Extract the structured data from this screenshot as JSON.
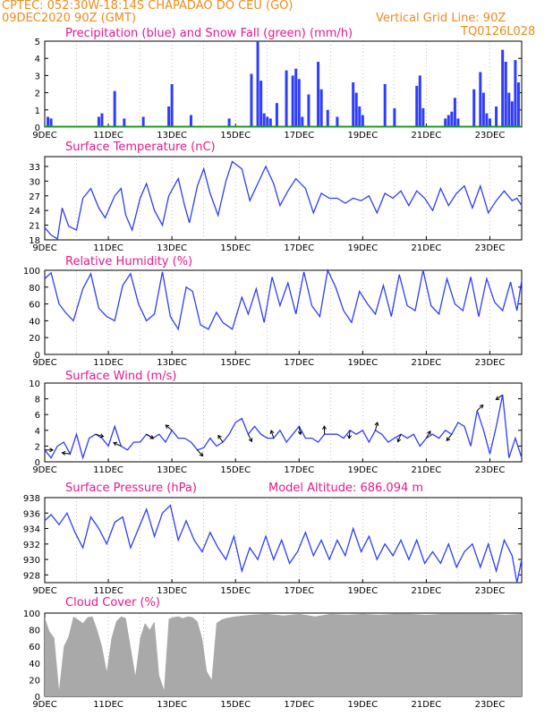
{
  "header": {
    "line1": "CPTEC:   052:30W-18:14S   CHAPADAO DO CEU (GO)",
    "line2_left": "09DEC2020 90Z (GMT)",
    "line2_right": "Vertical Grid Line: 90Z",
    "line3_right": "TQ0126L028"
  },
  "colors": {
    "header": "#f08a1c",
    "title": "#e8198b",
    "line": "#2e3cff",
    "precip": "#2e3cff",
    "snow": "#1a9c1a",
    "cloud": "#a9a9a9"
  },
  "x_ticks": [
    "9DEC",
    "11DEC",
    "13DEC",
    "15DEC",
    "17DEC",
    "19DEC",
    "21DEC",
    "23DEC"
  ],
  "chart_data": [
    {
      "type": "bar",
      "title": "Precipitation (blue) and Snow Fall (green) (mm/h)",
      "ylim": [
        0,
        5
      ],
      "yticks": [
        0,
        1,
        2,
        3,
        4,
        5
      ],
      "x_range_days": [
        9,
        24
      ],
      "series": [
        {
          "name": "Precipitation",
          "x": [
            9.1,
            9.2,
            10.7,
            10.8,
            11.2,
            11.5,
            12.1,
            12.9,
            13.0,
            13.6,
            14.8,
            15.5,
            15.7,
            15.8,
            15.9,
            16.0,
            16.1,
            16.3,
            16.6,
            16.8,
            16.9,
            17.0,
            17.1,
            17.3,
            17.6,
            17.7,
            17.9,
            18.2,
            18.7,
            18.8,
            18.9,
            19.0,
            19.7,
            20.0,
            20.7,
            20.8,
            20.9,
            21.6,
            21.7,
            21.8,
            21.9,
            22.0,
            22.5,
            22.7,
            22.8,
            22.9,
            23.0,
            23.2,
            23.4,
            23.5,
            23.6,
            23.7,
            23.8,
            23.9
          ],
          "values": [
            0.6,
            0.5,
            0.6,
            0.8,
            2.1,
            0.5,
            0.6,
            1.2,
            2.5,
            0.7,
            0.5,
            3.1,
            5.0,
            2.7,
            0.8,
            0.6,
            0.5,
            1.4,
            3.3,
            3.0,
            3.4,
            2.8,
            0.6,
            1.9,
            3.8,
            2.2,
            1.0,
            0.6,
            2.6,
            2.0,
            1.2,
            0.7,
            2.5,
            1.1,
            2.4,
            3.0,
            1.1,
            0.5,
            0.7,
            0.9,
            1.7,
            0.5,
            2.2,
            3.2,
            2.0,
            0.8,
            0.5,
            1.2,
            4.5,
            3.8,
            2.0,
            1.5,
            3.9,
            2.6
          ]
        },
        {
          "name": "Snow Fall",
          "values": [
            0
          ]
        }
      ]
    },
    {
      "type": "line",
      "title": "Surface Temperature (nC)",
      "ylim": [
        18,
        35
      ],
      "yticks": [
        18,
        21,
        24,
        27,
        30,
        33
      ],
      "x": [
        9.0,
        9.2,
        9.4,
        9.55,
        9.75,
        10.0,
        10.2,
        10.45,
        10.7,
        10.9,
        11.2,
        11.4,
        11.55,
        11.75,
        12.0,
        12.2,
        12.45,
        12.7,
        12.9,
        13.2,
        13.4,
        13.55,
        13.8,
        14.0,
        14.2,
        14.45,
        14.7,
        14.9,
        15.2,
        15.45,
        15.7,
        15.95,
        16.2,
        16.4,
        16.65,
        16.9,
        17.2,
        17.45,
        17.7,
        17.95,
        18.2,
        18.45,
        18.7,
        18.95,
        19.2,
        19.45,
        19.7,
        19.95,
        20.2,
        20.45,
        20.7,
        20.95,
        21.2,
        21.45,
        21.7,
        21.95,
        22.2,
        22.45,
        22.7,
        22.95,
        23.2,
        23.45,
        23.7,
        23.85,
        24.0
      ],
      "values": [
        20.5,
        19.0,
        18.2,
        24.5,
        20.8,
        20.0,
        26.5,
        28.5,
        24.5,
        22.5,
        27.0,
        28.5,
        23.0,
        20.0,
        26.5,
        29.5,
        24.0,
        21.0,
        27.0,
        30.5,
        25.0,
        21.5,
        29.0,
        32.5,
        27.5,
        23.0,
        30.0,
        34.0,
        32.5,
        26.0,
        29.5,
        33.0,
        29.5,
        25.0,
        28.0,
        30.5,
        28.5,
        23.5,
        27.5,
        26.5,
        26.5,
        25.5,
        26.5,
        26.0,
        27.0,
        23.5,
        27.5,
        26.5,
        28.0,
        25.0,
        28.0,
        26.5,
        24.0,
        28.5,
        25.0,
        27.5,
        29.0,
        24.5,
        29.0,
        23.5,
        26.0,
        28.0,
        26.0,
        26.5,
        25.0
      ]
    },
    {
      "type": "line",
      "title": "Relative Humidity (%)",
      "ylim": [
        0,
        100
      ],
      "yticks": [
        0,
        20,
        40,
        60,
        80,
        100
      ],
      "x": [
        9.0,
        9.2,
        9.45,
        9.65,
        9.9,
        10.2,
        10.45,
        10.7,
        10.95,
        11.2,
        11.45,
        11.7,
        11.95,
        12.2,
        12.45,
        12.7,
        12.95,
        13.2,
        13.45,
        13.65,
        13.9,
        14.15,
        14.4,
        14.6,
        14.9,
        15.2,
        15.4,
        15.65,
        15.9,
        16.15,
        16.4,
        16.65,
        16.9,
        17.15,
        17.4,
        17.65,
        17.9,
        18.15,
        18.4,
        18.65,
        18.9,
        19.15,
        19.4,
        19.65,
        19.9,
        20.15,
        20.4,
        20.65,
        20.9,
        21.15,
        21.4,
        21.65,
        21.9,
        22.15,
        22.4,
        22.65,
        22.9,
        23.15,
        23.4,
        23.65,
        23.85,
        24.0
      ],
      "values": [
        90,
        97,
        60,
        50,
        40,
        78,
        96,
        55,
        45,
        40,
        82,
        96,
        60,
        40,
        48,
        98,
        45,
        30,
        80,
        75,
        35,
        30,
        50,
        38,
        30,
        68,
        48,
        78,
        38,
        92,
        58,
        85,
        48,
        98,
        58,
        45,
        100,
        80,
        52,
        38,
        75,
        60,
        48,
        82,
        45,
        95,
        58,
        52,
        100,
        58,
        48,
        90,
        60,
        52,
        92,
        45,
        90,
        62,
        52,
        86,
        52,
        88
      ]
    },
    {
      "type": "line",
      "title": "Surface Wind (m/s)",
      "ylim": [
        0,
        10
      ],
      "yticks": [
        0,
        2,
        4,
        6,
        8,
        10
      ],
      "x": [
        9.0,
        9.2,
        9.4,
        9.6,
        9.8,
        10.0,
        10.2,
        10.4,
        10.6,
        10.8,
        11.0,
        11.2,
        11.4,
        11.6,
        11.8,
        12.0,
        12.2,
        12.4,
        12.6,
        12.8,
        13.0,
        13.2,
        13.4,
        13.6,
        13.8,
        14.0,
        14.2,
        14.4,
        14.6,
        14.8,
        15.0,
        15.2,
        15.4,
        15.6,
        15.8,
        16.0,
        16.2,
        16.4,
        16.6,
        16.8,
        17.0,
        17.2,
        17.4,
        17.6,
        17.8,
        18.0,
        18.2,
        18.4,
        18.6,
        18.8,
        19.0,
        19.2,
        19.4,
        19.6,
        19.8,
        20.0,
        20.2,
        20.4,
        20.6,
        20.8,
        21.0,
        21.2,
        21.4,
        21.6,
        21.8,
        22.0,
        22.2,
        22.4,
        22.6,
        22.8,
        23.0,
        23.2,
        23.4,
        23.6,
        23.8,
        24.0
      ],
      "values": [
        1.5,
        0.5,
        2.0,
        2.5,
        1.0,
        3.5,
        0.5,
        3.0,
        3.5,
        3.0,
        2.0,
        4.5,
        2.0,
        1.5,
        2.5,
        2.5,
        3.5,
        3.0,
        3.5,
        2.5,
        4.0,
        3.0,
        3.0,
        2.5,
        1.5,
        1.8,
        3.0,
        2.0,
        2.5,
        3.5,
        5.0,
        5.5,
        3.5,
        4.5,
        3.5,
        3.0,
        3.0,
        4.0,
        2.5,
        3.5,
        4.5,
        3.0,
        3.0,
        2.5,
        3.5,
        3.5,
        3.5,
        3.0,
        4.0,
        3.5,
        4.0,
        2.5,
        4.0,
        3.5,
        2.5,
        3.0,
        3.5,
        3.0,
        3.5,
        2.0,
        3.0,
        3.5,
        3.0,
        4.0,
        3.5,
        5.0,
        4.5,
        2.0,
        6.5,
        4.0,
        1.0,
        4.5,
        8.5,
        0.5,
        3.0,
        0.5
      ]
    },
    {
      "type": "line",
      "title": "Surface Pressure (hPa)",
      "annotation": "Model Altitude: 686.094 m",
      "ylim": [
        927,
        938
      ],
      "yticks": [
        928,
        930,
        932,
        934,
        936,
        938
      ],
      "x": [
        9.0,
        9.2,
        9.45,
        9.7,
        9.95,
        10.2,
        10.45,
        10.7,
        10.95,
        11.2,
        11.45,
        11.7,
        11.95,
        12.2,
        12.45,
        12.7,
        12.95,
        13.2,
        13.45,
        13.7,
        13.95,
        14.2,
        14.45,
        14.7,
        14.95,
        15.2,
        15.45,
        15.7,
        15.95,
        16.2,
        16.45,
        16.7,
        16.95,
        17.2,
        17.45,
        17.7,
        17.95,
        18.2,
        18.45,
        18.7,
        18.95,
        19.2,
        19.45,
        19.7,
        19.95,
        20.2,
        20.45,
        20.7,
        20.95,
        21.2,
        21.45,
        21.7,
        21.95,
        22.2,
        22.45,
        22.7,
        22.95,
        23.2,
        23.45,
        23.7,
        23.85,
        24.0
      ],
      "values": [
        935.0,
        935.8,
        934.5,
        936.0,
        933.5,
        931.5,
        935.5,
        934.0,
        932.0,
        934.8,
        935.5,
        931.5,
        934.0,
        936.5,
        933.0,
        936.0,
        937.0,
        932.5,
        935.0,
        932.5,
        931.0,
        933.5,
        931.5,
        930.0,
        933.0,
        928.5,
        931.5,
        930.0,
        933.0,
        930.0,
        932.5,
        929.5,
        931.0,
        933.5,
        930.5,
        932.5,
        930.0,
        932.5,
        930.5,
        934.0,
        931.0,
        933.0,
        930.0,
        932.0,
        930.5,
        932.5,
        930.0,
        932.5,
        929.5,
        931.0,
        929.5,
        932.0,
        929.0,
        931.0,
        932.0,
        929.0,
        932.0,
        928.5,
        932.5,
        930.5,
        927.0,
        930.0
      ]
    },
    {
      "type": "area",
      "title": "Cloud Cover (%)",
      "ylim": [
        0,
        100
      ],
      "yticks": [
        0,
        20,
        40,
        60,
        80,
        100
      ],
      "x": [
        9.0,
        9.15,
        9.3,
        9.45,
        9.6,
        9.75,
        9.9,
        10.05,
        10.2,
        10.35,
        10.5,
        10.65,
        10.8,
        10.95,
        11.1,
        11.25,
        11.4,
        11.55,
        11.7,
        11.85,
        12.0,
        12.15,
        12.3,
        12.45,
        12.6,
        12.75,
        12.9,
        13.05,
        13.2,
        13.35,
        13.5,
        13.65,
        13.8,
        13.95,
        14.1,
        14.25,
        14.4,
        14.55,
        14.7,
        14.85,
        15.0,
        15.5,
        16.0,
        16.5,
        17.0,
        17.5,
        18.0,
        18.5,
        19.0,
        19.5,
        20.0,
        20.5,
        21.0,
        21.5,
        22.0,
        22.5,
        23.0,
        23.5,
        24.0
      ],
      "values": [
        95,
        78,
        70,
        8,
        60,
        72,
        96,
        92,
        88,
        95,
        96,
        80,
        60,
        30,
        70,
        90,
        96,
        94,
        60,
        25,
        70,
        88,
        80,
        90,
        25,
        8,
        93,
        95,
        96,
        94,
        96,
        95,
        90,
        70,
        30,
        20,
        88,
        92,
        94,
        95,
        96,
        98,
        99,
        97,
        99,
        96,
        99,
        98,
        99,
        98,
        99,
        99,
        98,
        99,
        99,
        99,
        99,
        98,
        99
      ]
    }
  ]
}
